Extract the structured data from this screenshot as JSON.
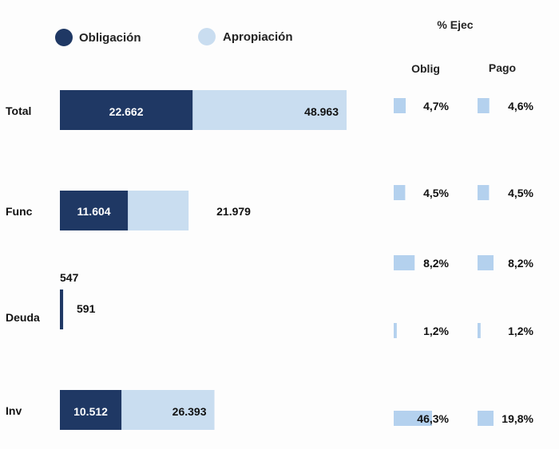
{
  "colors": {
    "obligacion": "#1f3864",
    "apropiacion": "#c9ddf0",
    "pct_bar": "#b4d1ee",
    "text": "#111111"
  },
  "chart_data": {
    "type": "bar",
    "orientation": "horizontal",
    "stacked": "overlay",
    "legend_position": "top-left",
    "grid": false,
    "categories": [
      "Total",
      "Func",
      "Deuda",
      "Inv"
    ],
    "series": [
      {
        "name": "Obligación",
        "values": [
          22662,
          11604,
          547,
          10512
        ],
        "labels": [
          "22.662",
          "11.604",
          "547",
          "10.512"
        ]
      },
      {
        "name": "Apropiación",
        "values": [
          48963,
          21979,
          591,
          26393
        ],
        "labels": [
          "48.963",
          "21.979",
          "591",
          "26.393"
        ]
      }
    ],
    "execution": {
      "title": "% Ejec",
      "columns": [
        {
          "name": "Oblig",
          "values": [
            4.7,
            4.5,
            8.2,
            1.2,
            46.3
          ],
          "labels": [
            "4,7%",
            "4,5%",
            "8,2%",
            "1,2%",
            "46,3%"
          ]
        },
        {
          "name": "Pago",
          "values": [
            4.6,
            4.5,
            8.2,
            1.2,
            19.8
          ],
          "labels": [
            "4,6%",
            "4,5%",
            "8,2%",
            "1,2%",
            "19,8%"
          ]
        }
      ]
    }
  }
}
